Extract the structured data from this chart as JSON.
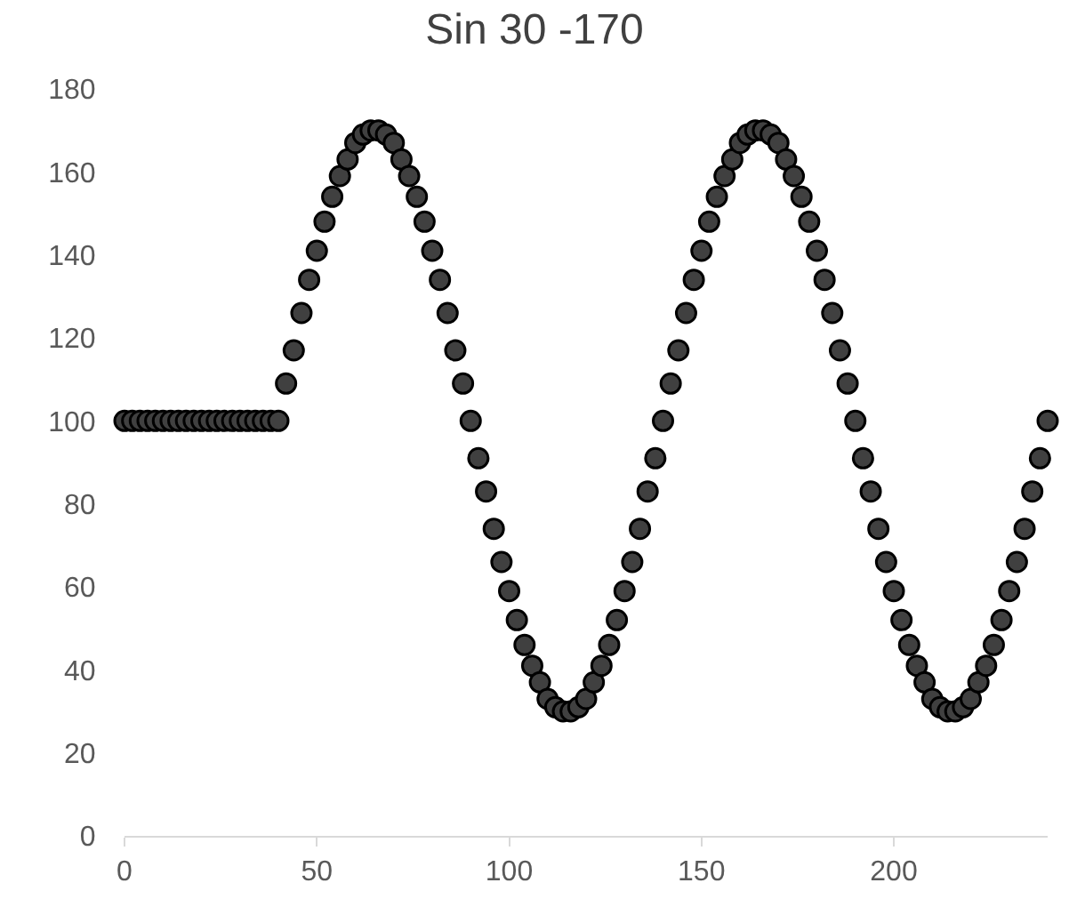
{
  "chart_data": {
    "type": "scatter",
    "title": "Sin 30 -170",
    "marker": "circle",
    "grid": false,
    "xlim": [
      0,
      240
    ],
    "xticks": [
      0,
      50,
      100,
      150,
      200
    ],
    "ylim": [
      0,
      180
    ],
    "yticks": [
      0,
      20,
      40,
      60,
      80,
      100,
      120,
      140,
      160,
      180
    ],
    "x": [
      0,
      2,
      4,
      6,
      8,
      10,
      12,
      14,
      16,
      18,
      20,
      22,
      24,
      26,
      28,
      30,
      32,
      34,
      36,
      38,
      40,
      42,
      44,
      46,
      48,
      50,
      52,
      54,
      56,
      58,
      60,
      62,
      64,
      66,
      68,
      70,
      72,
      74,
      76,
      78,
      80,
      82,
      84,
      86,
      88,
      90,
      92,
      94,
      96,
      98,
      100,
      102,
      104,
      106,
      108,
      110,
      112,
      114,
      116,
      118,
      120,
      122,
      124,
      126,
      128,
      130,
      132,
      134,
      136,
      138,
      140,
      142,
      144,
      146,
      148,
      150,
      152,
      154,
      156,
      158,
      160,
      162,
      164,
      166,
      168,
      170,
      172,
      174,
      176,
      178,
      180,
      182,
      184,
      186,
      188,
      190,
      192,
      194,
      196,
      198,
      200,
      202,
      204,
      206,
      208,
      210,
      212,
      214,
      216,
      218,
      220,
      222,
      224,
      226,
      228,
      230,
      232,
      234,
      236,
      238,
      240
    ],
    "series": [
      {
        "color": "#404040",
        "values": [
          100,
          100,
          100,
          100,
          100,
          100,
          100,
          100,
          100,
          100,
          100,
          100,
          100,
          100,
          100,
          100,
          100,
          100,
          100,
          100,
          100,
          109,
          117,
          126,
          134,
          141,
          148,
          154,
          159,
          163,
          167,
          169,
          170,
          170,
          169,
          167,
          163,
          159,
          154,
          148,
          141,
          134,
          126,
          117,
          109,
          100,
          91,
          83,
          74,
          66,
          59,
          52,
          46,
          41,
          37,
          33,
          31,
          30,
          30,
          31,
          33,
          37,
          41,
          46,
          52,
          59,
          66,
          74,
          83,
          91,
          100,
          109,
          117,
          126,
          134,
          141,
          148,
          154,
          159,
          163,
          167,
          169,
          170,
          170,
          169,
          167,
          163,
          159,
          154,
          148,
          141,
          134,
          126,
          117,
          109,
          100,
          91,
          83,
          74,
          66,
          59,
          52,
          46,
          41,
          37,
          33,
          31,
          30,
          30,
          31,
          33,
          37,
          41,
          46,
          52,
          59,
          66,
          74,
          83,
          91,
          100
        ]
      }
    ]
  }
}
